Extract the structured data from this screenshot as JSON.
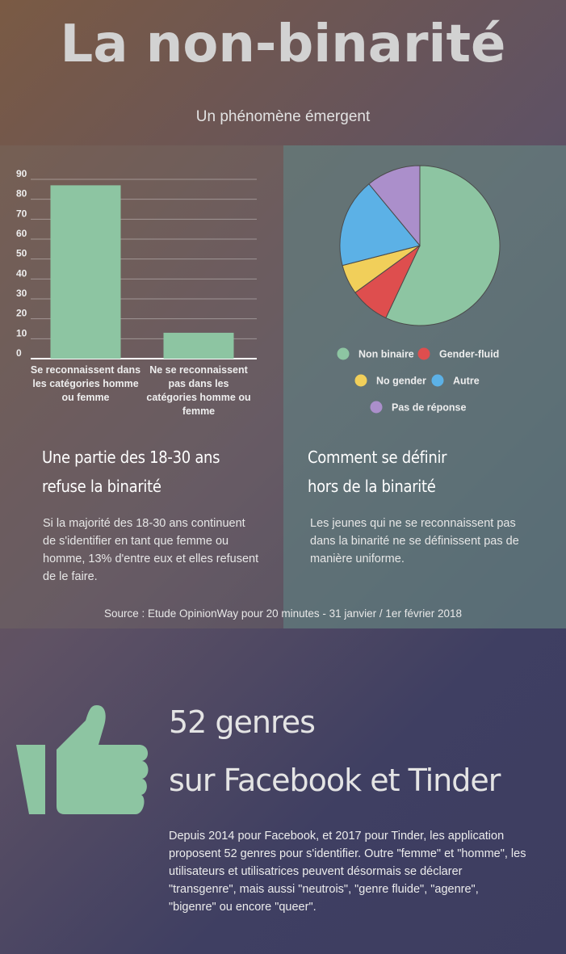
{
  "header": {
    "title": "La non-binarité",
    "subtitle": "Un phénomène émergent"
  },
  "colors": {
    "green": "#8dc5a2",
    "red": "#de4e4e",
    "yellow": "#f1cf5a",
    "blue": "#5cb1e6",
    "purple": "#ab8fcb"
  },
  "chart_data": [
    {
      "type": "bar",
      "categories": [
        "Se reconnaissent dans les catégories homme ou femme",
        "Ne se reconnaissent pas dans les catégories homme ou femme"
      ],
      "values": [
        87,
        13
      ],
      "ylim": [
        0,
        90
      ],
      "yticks": [
        0,
        10,
        20,
        30,
        40,
        50,
        60,
        70,
        80,
        90
      ],
      "grid": true,
      "title": "",
      "xlabel": "",
      "ylabel": ""
    },
    {
      "type": "pie",
      "slices": [
        {
          "label": "Non binaire",
          "value": 57,
          "color": "#8dc5a2"
        },
        {
          "label": "Gender-fluid",
          "value": 8,
          "color": "#de4e4e"
        },
        {
          "label": "No gender",
          "value": 6,
          "color": "#f1cf5a"
        },
        {
          "label": "Autre",
          "value": 18,
          "color": "#5cb1e6"
        },
        {
          "label": "Pas de réponse",
          "value": 11,
          "color": "#ab8fcb"
        }
      ],
      "legend": "bottom"
    }
  ],
  "left_block": {
    "title_line1": "Une partie des 18-30 ans",
    "title_line2": "refuse la binarité",
    "text": "Si la majorité des 18-30 ans continuent de s'identifier en tant que femme ou homme, 13% d'entre eux et elles refusent de le faire."
  },
  "right_block": {
    "title_line1": "Comment se définir",
    "title_line2": "hors de la binarité",
    "text": "Les jeunes qui ne se reconnaissent pas dans la binarité ne se définissent pas de manière uniforme."
  },
  "source": "Source : Etude OpinionWay pour 20 minutes - 31 janvier / 1er février 2018",
  "genres": {
    "icon": "thumbs-up-icon",
    "title_line1": "52 genres",
    "title_line2": "sur Facebook et Tinder",
    "text": "Depuis 2014 pour Facebook, et 2017 pour Tinder, les application proposent 52 genres pour s'identifier. Outre \"femme\" et \"homme\", les utilisateurs et utilisatrices peuvent désormais se déclarer \"transgenre\", mais aussi \"neutrois\", \"genre fluide\", \"agenre\", \"bigenre\" ou encore \"queer\"."
  }
}
